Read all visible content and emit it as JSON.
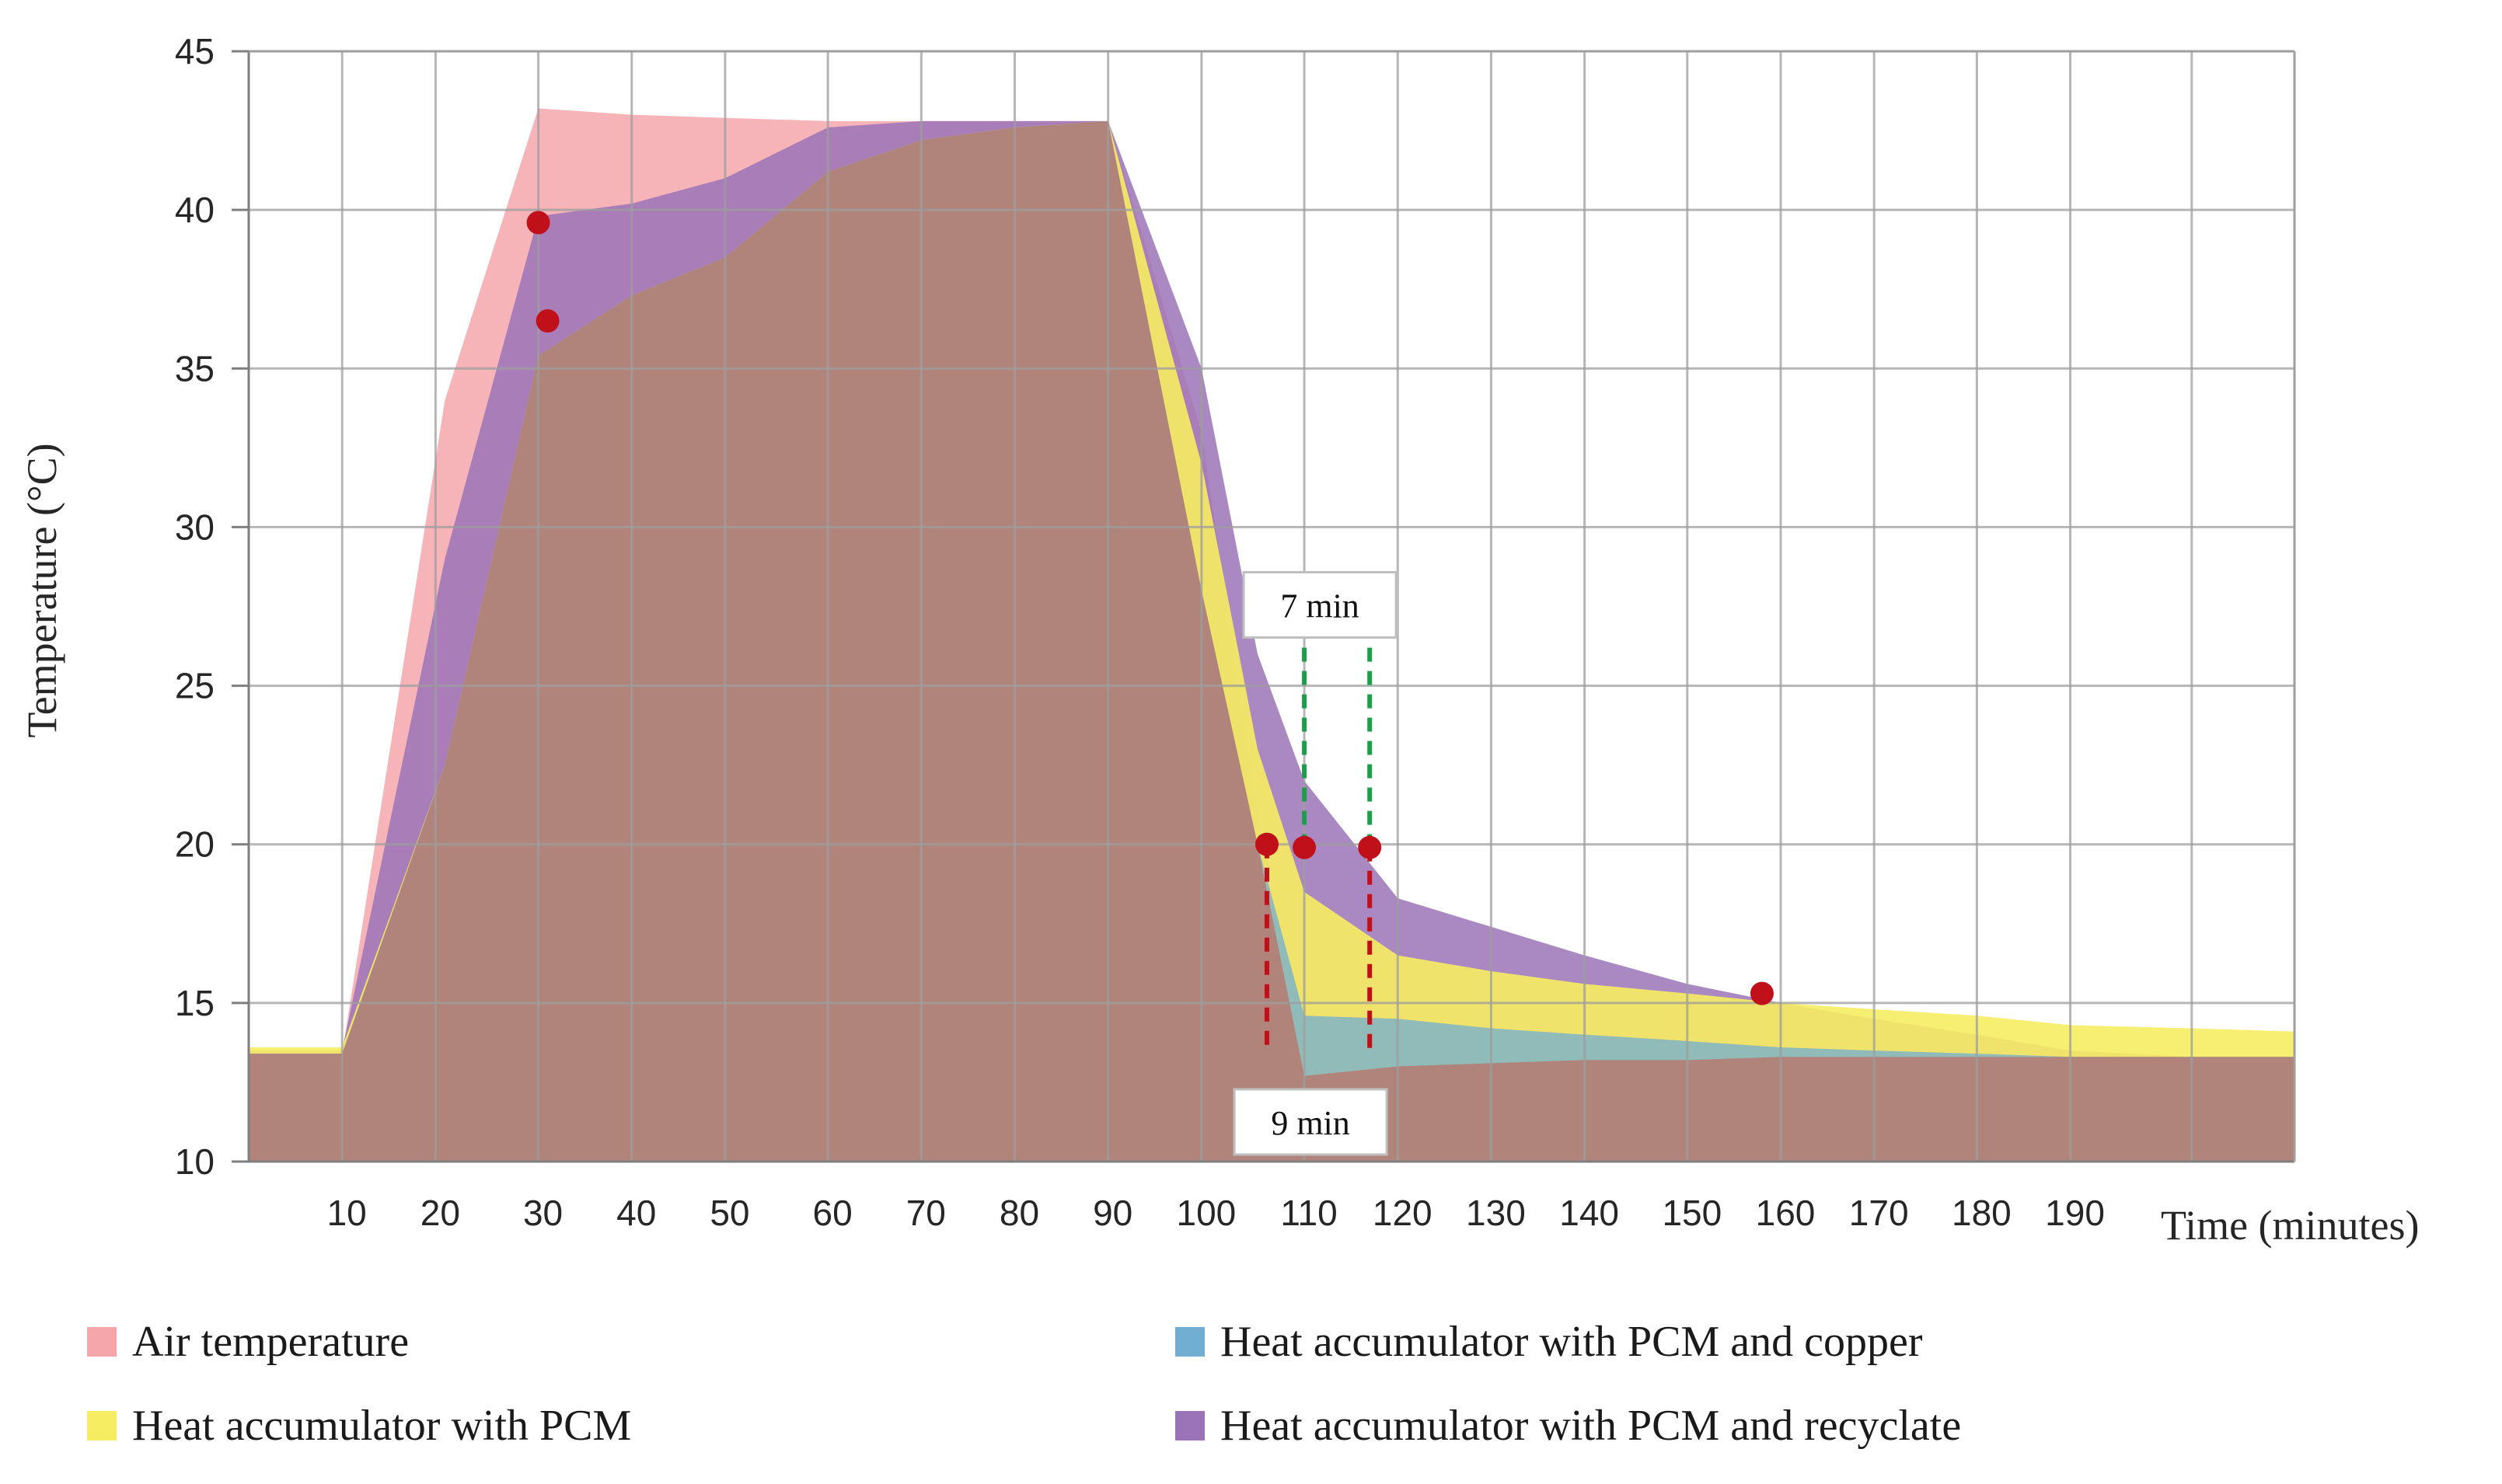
{
  "chart_data": {
    "type": "area",
    "xlabel": "Time (minutes)",
    "ylabel": "Temperature (°C)",
    "xlim": [
      0,
      219
    ],
    "ylim": [
      10,
      45
    ],
    "x_ticks": [
      10,
      20,
      30,
      40,
      50,
      60,
      70,
      80,
      90,
      100,
      110,
      120,
      130,
      140,
      150,
      160,
      170,
      180,
      190
    ],
    "y_ticks": [
      10,
      15,
      20,
      25,
      30,
      35,
      40,
      45
    ],
    "x_tick_labels": [
      "10",
      "20",
      "30",
      "40",
      "50",
      "60",
      "70",
      "80",
      "90",
      "100",
      "110",
      "120",
      "130",
      "140",
      "150",
      "160",
      "170",
      "180",
      "190"
    ],
    "y_tick_labels": [
      "10",
      "15",
      "20",
      "25",
      "30",
      "35",
      "40",
      "45"
    ],
    "x_grid_lines": [
      10,
      20,
      31,
      41,
      51,
      62,
      72,
      82,
      92,
      102,
      113,
      123,
      133,
      143,
      154,
      164,
      174,
      185,
      195,
      208
    ],
    "grid": true,
    "legend_position": "bottom",
    "series": [
      {
        "name": "Air temperature",
        "color": "#f4a6ab",
        "points": [
          [
            0,
            13.4
          ],
          [
            10,
            13.4
          ],
          [
            21,
            34
          ],
          [
            31,
            43.2
          ],
          [
            41,
            43
          ],
          [
            51,
            42.9
          ],
          [
            62,
            42.8
          ],
          [
            72,
            42.8
          ],
          [
            82,
            42.8
          ],
          [
            92,
            42.8
          ],
          [
            102,
            33
          ],
          [
            108,
            21
          ],
          [
            113,
            12.7
          ],
          [
            123,
            13
          ],
          [
            133,
            13.1
          ],
          [
            143,
            13.2
          ],
          [
            154,
            13.2
          ],
          [
            164,
            13.3
          ],
          [
            174,
            13.3
          ],
          [
            185,
            13.3
          ],
          [
            195,
            13.3
          ],
          [
            208,
            13.3
          ],
          [
            219,
            13.3
          ]
        ]
      },
      {
        "name": "Heat accumulator with PCM",
        "color": "#f6ed63",
        "points": [
          [
            0,
            13.6
          ],
          [
            10,
            13.6
          ],
          [
            21,
            22.5
          ],
          [
            31,
            35.4
          ],
          [
            41,
            37.3
          ],
          [
            51,
            38.5
          ],
          [
            62,
            41.2
          ],
          [
            72,
            42.2
          ],
          [
            82,
            42.6
          ],
          [
            92,
            42.8
          ],
          [
            102,
            32
          ],
          [
            108,
            23
          ],
          [
            113,
            18.5
          ],
          [
            123,
            16.5
          ],
          [
            133,
            16
          ],
          [
            143,
            15.6
          ],
          [
            154,
            15.3
          ],
          [
            164,
            15
          ],
          [
            174,
            14.8
          ],
          [
            185,
            14.6
          ],
          [
            195,
            14.3
          ],
          [
            208,
            14.2
          ],
          [
            219,
            14.1
          ]
        ]
      },
      {
        "name": "Heat accumulator with PCM and copper",
        "color": "#72aed1",
        "points": [
          [
            0,
            13.4
          ],
          [
            10,
            13.4
          ],
          [
            21,
            22.5
          ],
          [
            31,
            35.4
          ],
          [
            41,
            37.3
          ],
          [
            51,
            38.5
          ],
          [
            62,
            41.2
          ],
          [
            72,
            42.2
          ],
          [
            82,
            42.6
          ],
          [
            92,
            42.8
          ],
          [
            102,
            28
          ],
          [
            108,
            20
          ],
          [
            113,
            14.6
          ],
          [
            123,
            14.5
          ],
          [
            133,
            14.2
          ],
          [
            143,
            14
          ],
          [
            154,
            13.8
          ],
          [
            164,
            13.6
          ],
          [
            174,
            13.5
          ],
          [
            185,
            13.4
          ],
          [
            195,
            13.3
          ],
          [
            208,
            13.3
          ],
          [
            219,
            13.3
          ]
        ]
      },
      {
        "name": "Heat accumulator with PCM and recyclate",
        "color": "#9b74b7",
        "points": [
          [
            0,
            13.5
          ],
          [
            10,
            13.5
          ],
          [
            21,
            29
          ],
          [
            31,
            39.8
          ],
          [
            41,
            40.2
          ],
          [
            51,
            41
          ],
          [
            62,
            42.6
          ],
          [
            72,
            42.8
          ],
          [
            82,
            42.8
          ],
          [
            92,
            42.8
          ],
          [
            102,
            35
          ],
          [
            108,
            26
          ],
          [
            113,
            22
          ],
          [
            123,
            18.3
          ],
          [
            133,
            17.4
          ],
          [
            143,
            16.5
          ],
          [
            154,
            15.6
          ],
          [
            164,
            15
          ],
          [
            174,
            14.5
          ],
          [
            185,
            14
          ],
          [
            195,
            13.5
          ],
          [
            208,
            13.3
          ],
          [
            219,
            13.3
          ]
        ]
      }
    ],
    "base_overlay_color": "#b0847a",
    "markers": [
      [
        31,
        39.6
      ],
      [
        32,
        36.5
      ],
      [
        109,
        20
      ],
      [
        113,
        19.9
      ],
      [
        120,
        19.9
      ],
      [
        162,
        15.3
      ]
    ],
    "marker_color": "#c0101a",
    "dashed_lines": [
      {
        "x": 109,
        "y_from": 20,
        "y_to": 13.5,
        "color": "#c0101a"
      },
      {
        "x": 120,
        "y_from": 19.9,
        "y_to": 13.3,
        "color": "#c0101a"
      },
      {
        "x": 113,
        "y_from": 26.2,
        "y_to": 19.9,
        "color": "#1e9e4a"
      },
      {
        "x": 120,
        "y_from": 26.2,
        "y_to": 19.9,
        "color": "#1e9e4a"
      }
    ],
    "annotations": [
      {
        "text": "7 min",
        "x": 114,
        "y": 27.5
      },
      {
        "text": "9 min",
        "x": 113,
        "y": 11.2
      }
    ]
  },
  "legend": {
    "items": [
      {
        "label": "Air temperature",
        "color": "#f4a6ab"
      },
      {
        "label": "Heat accumulator with PCM and copper",
        "color": "#72aed1"
      },
      {
        "label": "Heat accumulator with PCM",
        "color": "#f6ed63"
      },
      {
        "label": "Heat accumulator with PCM and recyclate",
        "color": "#9b74b7"
      }
    ]
  }
}
